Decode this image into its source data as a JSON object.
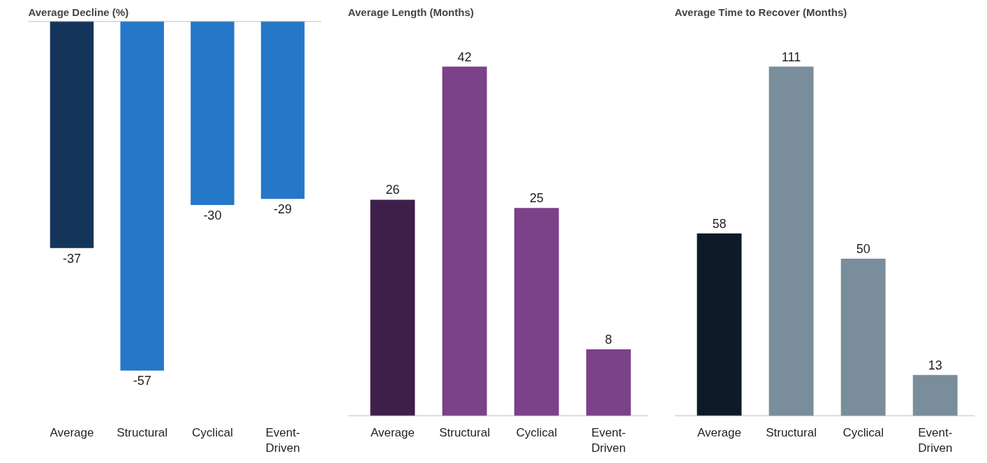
{
  "chart_data": [
    {
      "type": "bar",
      "title": "Average Decline (%)",
      "categories": [
        "Average",
        "Structural",
        "Cyclical",
        "Event-Driven"
      ],
      "values": [
        -37,
        -57,
        -30,
        -29
      ],
      "colors": [
        "#14345a",
        "#2577c8",
        "#2577c8",
        "#2577c8"
      ],
      "data_labels": true,
      "grid": false
    },
    {
      "type": "bar",
      "title": "Average Length (Months)",
      "categories": [
        "Average",
        "Structural",
        "Cyclical",
        "Event-Driven"
      ],
      "values": [
        26,
        42,
        25,
        8
      ],
      "colors": [
        "#3d1f4a",
        "#7b4189",
        "#7b4189",
        "#7b4189"
      ],
      "data_labels": true,
      "grid": false
    },
    {
      "type": "bar",
      "title": "Average Time to Recover (Months)",
      "categories": [
        "Average",
        "Structural",
        "Cyclical",
        "Event-Driven"
      ],
      "values": [
        58,
        111,
        50,
        13
      ],
      "colors": [
        "#0f1a28",
        "#7a8d9b",
        "#7a8d9b",
        "#7a8d9b"
      ],
      "data_labels": true,
      "grid": false
    }
  ]
}
